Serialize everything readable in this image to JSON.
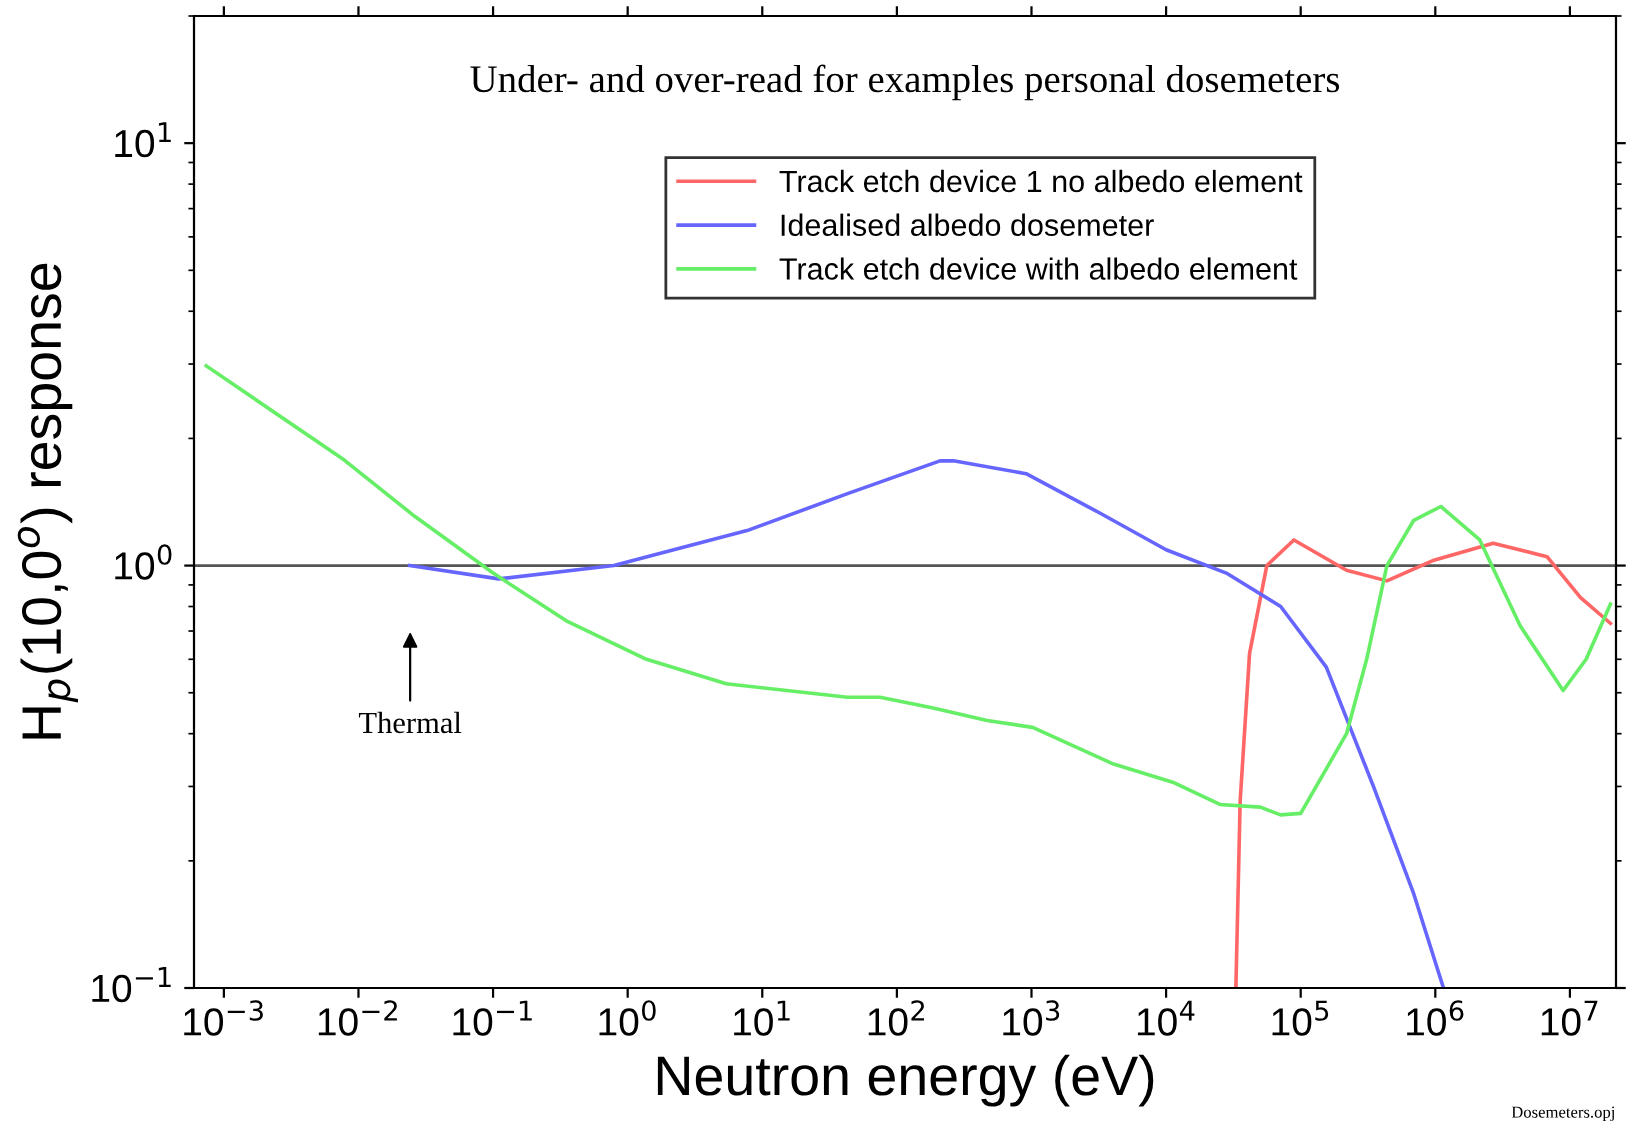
{
  "chart_data": {
    "type": "line",
    "title": "Under- and over-read for examples personal dosemeters",
    "xlabel": "Neutron energy (eV)",
    "ylabel": "H$_{p}$(10,0$^{o}$) response",
    "log": "xy",
    "grid": false,
    "legend": "top",
    "marker": "none",
    "line_style": "solid",
    "xlim": [
      0.0006,
      22000000
    ],
    "ylim": [
      0.1,
      20
    ],
    "xticks": [
      {
        "value": 0.001,
        "label": "10$^{−3}$"
      },
      {
        "value": 0.01,
        "label": "10$^{−2}$"
      },
      {
        "value": 0.1,
        "label": "10$^{−1}$"
      },
      {
        "value": 1,
        "label": "10$^{0}$"
      },
      {
        "value": 10,
        "label": "10$^{1}$"
      },
      {
        "value": 100,
        "label": "10$^{2}$"
      },
      {
        "value": 1000,
        "label": "10$^{3}$"
      },
      {
        "value": 10000,
        "label": "10$^{4}$"
      },
      {
        "value": 100000,
        "label": "10$^{5}$"
      },
      {
        "value": 1000000,
        "label": "10$^{6}$"
      },
      {
        "value": 10000000,
        "label": "10$^{7}$"
      }
    ],
    "yticks": [
      {
        "value": 0.1,
        "label": "10$^{−1}$"
      },
      {
        "value": 1,
        "label": "10$^{0}$"
      },
      {
        "value": 10,
        "label": "10$^{1}$"
      }
    ],
    "ref_lines": [
      {
        "axis": "y",
        "value": 1,
        "color": "#555555"
      }
    ],
    "annotations": [
      "Thermal",
      "Dosemeters.opj"
    ],
    "series": [
      {
        "name": "Track etch device 1 no albedo element",
        "color": "#ff6666",
        "x": [
          33000,
          35500,
          41700,
          56000,
          89000,
          219000,
          437000,
          977000,
          2690000,
          6760000,
          12000000,
          20000000
        ],
        "values": [
          0.1,
          0.277,
          0.62,
          1.0,
          1.15,
          0.975,
          0.92,
          1.03,
          1.13,
          1.05,
          0.84,
          0.73
        ]
      },
      {
        "name": "Idealised albedo dosemeter",
        "color": "#6666ff",
        "x": [
          0.024,
          0.11,
          0.79,
          7.7,
          43,
          209,
          263,
          912,
          3240,
          10000,
          28000,
          71000,
          155000,
          347000,
          692000,
          1150000
        ],
        "values": [
          1.0,
          0.93,
          1.0,
          1.21,
          1.48,
          1.77,
          1.77,
          1.65,
          1.33,
          1.09,
          0.96,
          0.8,
          0.575,
          0.3,
          0.167,
          0.1
        ]
      },
      {
        "name": "Track etch device with albedo element",
        "color": "#66ee66",
        "x": [
          0.00074,
          0.0078,
          0.026,
          0.1,
          0.35,
          1.38,
          5.4,
          43,
          75,
          186,
          468,
          1020,
          4070,
          11200,
          25100,
          50100,
          70800,
          100000,
          219000,
          309000,
          437000,
          692000,
          1100000,
          2140000,
          4270000,
          8910000,
          13200000,
          20000000
        ],
        "values": [
          2.97,
          1.78,
          1.31,
          0.96,
          0.74,
          0.6,
          0.525,
          0.488,
          0.488,
          0.46,
          0.43,
          0.414,
          0.339,
          0.307,
          0.272,
          0.268,
          0.257,
          0.259,
          0.4,
          0.6,
          1.0,
          1.28,
          1.38,
          1.15,
          0.72,
          0.506,
          0.6,
          0.81
        ]
      }
    ]
  }
}
